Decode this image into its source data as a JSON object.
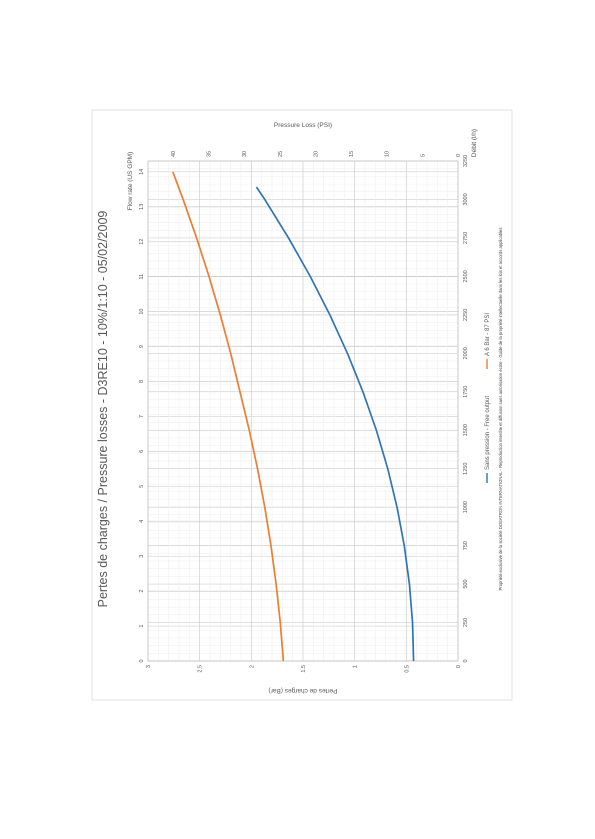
{
  "chart_data": {
    "type": "line",
    "title": "Pertes de charges / Pressure losses - D3RE10 - 10%/1:10 - 05/02/2009",
    "x_axes": {
      "primary": {
        "label": "Débit (l/h)",
        "range": [
          0,
          3250
        ],
        "ticks": [
          0,
          250,
          500,
          750,
          1000,
          1250,
          1500,
          1750,
          2000,
          2250,
          2500,
          2750,
          3000,
          3250
        ]
      },
      "secondary": {
        "label": "Flow rate (US GPM)",
        "range": [
          0,
          14.31
        ],
        "ticks": [
          0,
          1,
          2,
          3,
          4,
          5,
          6,
          7,
          8,
          9,
          10,
          11,
          12,
          13,
          14
        ]
      }
    },
    "y_axes": {
      "primary": {
        "label": "Pertes de charges (Bar)",
        "range": [
          0,
          3
        ],
        "ticks": [
          "0",
          "0.5",
          "1",
          "1.5",
          "2",
          "2.5",
          "3"
        ]
      },
      "secondary": {
        "label": "Pressure Loss (PSI)",
        "range": [
          0,
          43.5
        ],
        "ticks": [
          "0",
          "5",
          "10",
          "15",
          "20",
          "25",
          "30",
          "35",
          "40"
        ]
      }
    },
    "grid": true,
    "orientation": "rotated-90-clockwise",
    "legend_position": "bottom",
    "series": [
      {
        "name": "Sans pression - Free output",
        "color": "#2e75b6",
        "x": [
          0,
          250,
          500,
          750,
          1000,
          1250,
          1500,
          1750,
          2000,
          2250,
          2500,
          2750,
          3000,
          3080
        ],
        "y": [
          0.43,
          0.44,
          0.47,
          0.52,
          0.59,
          0.68,
          0.79,
          0.92,
          1.07,
          1.24,
          1.43,
          1.64,
          1.87,
          1.95
        ]
      },
      {
        "name": "A 6 Bar - 87 PSI",
        "color": "#ed7d31",
        "x": [
          0,
          250,
          500,
          750,
          1000,
          1250,
          1500,
          1750,
          2000,
          2250,
          2500,
          2750,
          3000,
          3180
        ],
        "y": [
          1.69,
          1.72,
          1.76,
          1.81,
          1.87,
          1.94,
          2.02,
          2.11,
          2.2,
          2.3,
          2.41,
          2.53,
          2.66,
          2.76
        ]
      }
    ]
  },
  "footer": "Propriété exclusive de la société DOSATRON INTERNATIONAL - Reproduction interdite et diffusion sans autorisation écrite - Guide de la propriété intellectuelle dans les lois et accords applicables",
  "colors": {
    "blue": "#2e75b6",
    "orange": "#ed7d31",
    "text": "#595959",
    "frame": "#d9d9d9"
  }
}
